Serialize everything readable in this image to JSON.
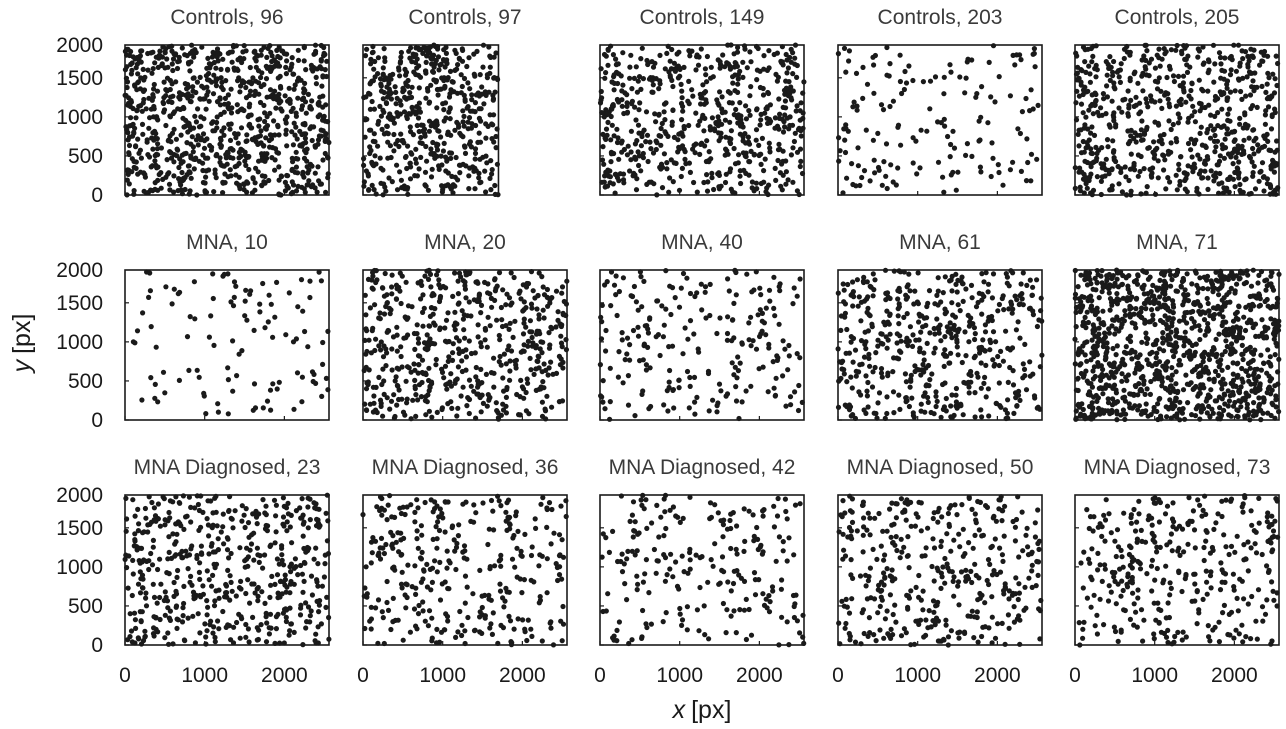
{
  "chart_data": {
    "type": "scatter",
    "xlabel_var": "x",
    "xlabel_unit": "[px]",
    "ylabel_var": "y",
    "ylabel_unit": "[px]",
    "xlim": [
      0,
      2560
    ],
    "ylim": [
      0,
      1920
    ],
    "xticks": [
      0,
      1000,
      2000
    ],
    "yticks": [
      0,
      500,
      1000,
      1500,
      2000
    ],
    "point_generation": "approximate reconstruction: uniformly scattered sample points within each panel's x/y range, point count estimated per panel",
    "panels": [
      {
        "title": "Controls, 96",
        "row": 0,
        "col": 0,
        "approx_points": 900,
        "x_max": 2560
      },
      {
        "title": "Controls, 97",
        "row": 0,
        "col": 1,
        "approx_points": 520,
        "x_max": 1700
      },
      {
        "title": "Controls, 149",
        "row": 0,
        "col": 2,
        "approx_points": 620,
        "x_max": 2560
      },
      {
        "title": "Controls, 203",
        "row": 0,
        "col": 3,
        "approx_points": 160,
        "x_max": 2560
      },
      {
        "title": "Controls, 205",
        "row": 0,
        "col": 4,
        "approx_points": 700,
        "x_max": 2560
      },
      {
        "title": "MNA, 10",
        "row": 1,
        "col": 0,
        "approx_points": 110,
        "x_max": 2560
      },
      {
        "title": "MNA, 20",
        "row": 1,
        "col": 1,
        "approx_points": 560,
        "x_max": 2560
      },
      {
        "title": "MNA, 40",
        "row": 1,
        "col": 2,
        "approx_points": 230,
        "x_max": 2560
      },
      {
        "title": "MNA, 61",
        "row": 1,
        "col": 3,
        "approx_points": 500,
        "x_max": 2560
      },
      {
        "title": "MNA, 71",
        "row": 1,
        "col": 4,
        "approx_points": 1100,
        "x_max": 2560
      },
      {
        "title": "MNA Diagnosed, 23",
        "row": 2,
        "col": 0,
        "approx_points": 520,
        "x_max": 2560
      },
      {
        "title": "MNA Diagnosed, 36",
        "row": 2,
        "col": 1,
        "approx_points": 330,
        "x_max": 2560
      },
      {
        "title": "MNA Diagnosed, 42",
        "row": 2,
        "col": 2,
        "approx_points": 220,
        "x_max": 2560
      },
      {
        "title": "MNA Diagnosed, 50",
        "row": 2,
        "col": 3,
        "approx_points": 380,
        "x_max": 2560
      },
      {
        "title": "MNA Diagnosed, 73",
        "row": 2,
        "col": 4,
        "approx_points": 340,
        "x_max": 2560
      }
    ]
  }
}
